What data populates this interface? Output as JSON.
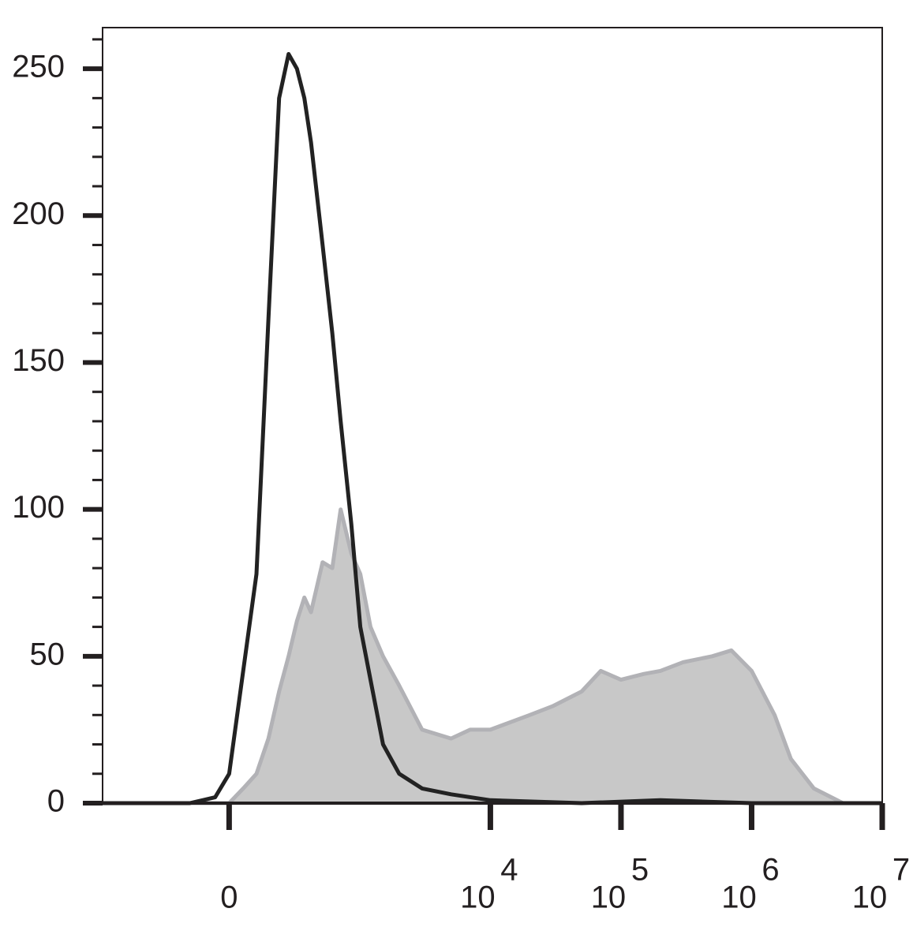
{
  "chart_data": {
    "type": "histogram_overlay",
    "x_scale": "asinh",
    "x_scale_width": 200,
    "xlim": [
      -920,
      10000000
    ],
    "xticks": [
      0,
      {
        "value": 10000,
        "label": "10",
        "exponent": "4"
      },
      {
        "value": 100000,
        "label": "10",
        "exponent": "5"
      },
      {
        "value": 1000000,
        "label": "10",
        "exponent": "6"
      },
      {
        "value": 10000000,
        "label": "10",
        "exponent": "7"
      }
    ],
    "ylim": [
      0,
      264
    ],
    "yticks": [
      0,
      50,
      100,
      150,
      200,
      250
    ],
    "yminorticks": [
      10,
      20,
      30,
      40,
      60,
      70,
      80,
      90,
      110,
      120,
      130,
      140,
      160,
      170,
      180,
      190,
      210,
      220,
      230,
      240,
      260
    ],
    "series": [
      {
        "color": "#c8c8c8",
        "stroke": "#b2b2b6",
        "fill": true,
        "x": [
          -920,
          -100,
          0,
          50,
          100,
          150,
          200,
          250,
          300,
          350,
          400,
          500,
          600,
          700,
          850,
          1000,
          1200,
          1500,
          2000,
          3000,
          5000,
          7000,
          10000,
          20000,
          30000,
          50000,
          70000,
          100000,
          150000,
          200000,
          300000,
          500000,
          700000,
          1000000,
          1500000,
          2000000,
          3000000,
          5000000,
          10000000
        ],
        "values": [
          0,
          0,
          0,
          5,
          10,
          22,
          38,
          50,
          62,
          70,
          65,
          82,
          80,
          100,
          85,
          78,
          60,
          50,
          40,
          25,
          22,
          25,
          25,
          30,
          33,
          38,
          45,
          42,
          44,
          45,
          48,
          50,
          52,
          45,
          30,
          15,
          5,
          0,
          0
        ]
      },
      {
        "color": "#222222",
        "fill": false,
        "x": [
          -920,
          -150,
          -50,
          0,
          50,
          100,
          150,
          200,
          250,
          300,
          350,
          400,
          500,
          600,
          700,
          850,
          1000,
          1200,
          1500,
          2000,
          3000,
          5000,
          10000,
          50000,
          200000,
          1000000,
          10000000
        ],
        "values": [
          0,
          0,
          2,
          10,
          45,
          78,
          165,
          240,
          255,
          250,
          240,
          225,
          190,
          160,
          130,
          95,
          60,
          42,
          20,
          10,
          5,
          3,
          1,
          0,
          1,
          0,
          0
        ]
      }
    ]
  }
}
